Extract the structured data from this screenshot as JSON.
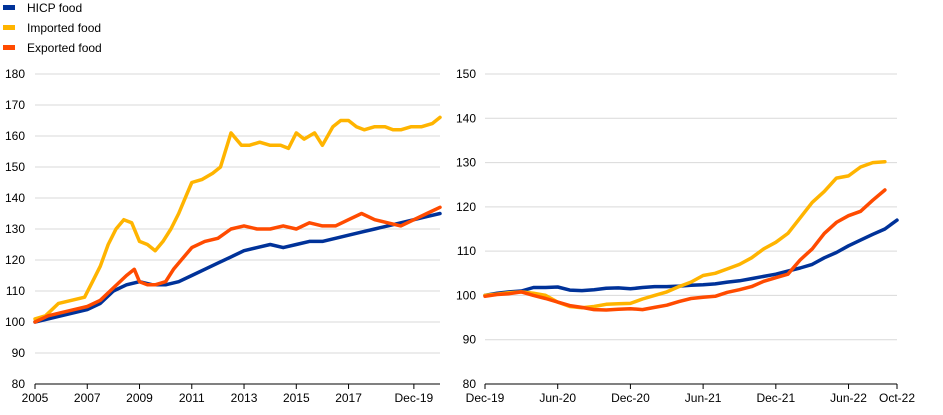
{
  "colors": {
    "hicp": "#003299",
    "imported": "#FFB400",
    "exported": "#FF4B00",
    "grid": "#d9d9d9"
  },
  "legend": [
    {
      "key": "hicp",
      "label": "HICP food",
      "color": "#003299"
    },
    {
      "key": "imported",
      "label": "Imported food",
      "color": "#FFB400"
    },
    {
      "key": "exported",
      "label": "Exported food",
      "color": "#FF4B00"
    }
  ],
  "chart_data": [
    {
      "type": "line",
      "title": "",
      "xlabel": "",
      "ylabel": "",
      "xlim": [
        2005,
        2020.5
      ],
      "ylim": [
        80,
        180
      ],
      "yticks": [
        80,
        90,
        100,
        110,
        120,
        130,
        140,
        150,
        160,
        170,
        180
      ],
      "xticks": [
        {
          "x": 2005,
          "label": "2005"
        },
        {
          "x": 2007,
          "label": "2007"
        },
        {
          "x": 2009,
          "label": "2009"
        },
        {
          "x": 2011,
          "label": "2011"
        },
        {
          "x": 2013,
          "label": "2013"
        },
        {
          "x": 2015,
          "label": "2015"
        },
        {
          "x": 2017,
          "label": "2017"
        },
        {
          "x": 2019.5,
          "label": "Dec-19"
        }
      ],
      "series": [
        {
          "key": "hicp",
          "name": "HICP food",
          "x": [
            2005,
            2006,
            2007,
            2007.5,
            2008,
            2008.5,
            2009,
            2009.5,
            2010,
            2010.5,
            2011,
            2011.5,
            2012,
            2012.5,
            2013,
            2013.5,
            2014,
            2014.5,
            2015,
            2015.5,
            2016,
            2016.5,
            2017,
            2017.5,
            2018,
            2018.5,
            2019,
            2019.5,
            2020,
            2020.5
          ],
          "y": [
            100,
            102,
            104,
            106,
            110,
            112,
            113,
            112,
            112,
            113,
            115,
            117,
            119,
            121,
            123,
            124,
            125,
            124,
            125,
            126,
            126,
            127,
            128,
            129,
            130,
            131,
            132,
            133,
            134,
            135
          ]
        },
        {
          "key": "imported",
          "name": "Imported food",
          "x": [
            2005,
            2005.4,
            2005.9,
            2006.4,
            2006.9,
            2007.2,
            2007.5,
            2007.8,
            2008.1,
            2008.4,
            2008.7,
            2009,
            2009.3,
            2009.6,
            2009.9,
            2010.2,
            2010.5,
            2010.8,
            2011,
            2011.4,
            2011.8,
            2012.1,
            2012.5,
            2012.7,
            2012.9,
            2013.2,
            2013.6,
            2014,
            2014.4,
            2014.7,
            2015,
            2015.3,
            2015.7,
            2016,
            2016.4,
            2016.7,
            2017,
            2017.3,
            2017.6,
            2018,
            2018.4,
            2018.7,
            2019,
            2019.4,
            2019.8,
            2020.2,
            2020.5
          ],
          "y": [
            101,
            102,
            106,
            107,
            108,
            113,
            118,
            125,
            130,
            133,
            132,
            126,
            125,
            123,
            126,
            130,
            135,
            141,
            145,
            146,
            148,
            150,
            161,
            159,
            157,
            157,
            158,
            157,
            157,
            156,
            161,
            159,
            161,
            157,
            163,
            165,
            165,
            163,
            162,
            163,
            163,
            162,
            162,
            163,
            163,
            164,
            166
          ]
        },
        {
          "key": "exported",
          "name": "Exported food",
          "x": [
            2005,
            2005.5,
            2006,
            2006.5,
            2007,
            2007.5,
            2008,
            2008.5,
            2008.8,
            2009,
            2009.3,
            2009.6,
            2010,
            2010.3,
            2010.6,
            2011,
            2011.5,
            2012,
            2012.5,
            2013,
            2013.5,
            2014,
            2014.5,
            2015,
            2015.5,
            2016,
            2016.5,
            2017,
            2017.5,
            2018,
            2018.5,
            2019,
            2019.5,
            2020,
            2020.5
          ],
          "y": [
            100,
            102,
            103,
            104,
            105,
            107,
            111,
            115,
            117,
            113,
            112,
            112,
            113,
            117,
            120,
            124,
            126,
            127,
            130,
            131,
            130,
            130,
            131,
            130,
            132,
            131,
            131,
            133,
            135,
            133,
            132,
            131,
            133,
            135,
            137
          ]
        }
      ]
    },
    {
      "type": "line",
      "title": "",
      "xlabel": "",
      "ylabel": "",
      "xlim": [
        0,
        34
      ],
      "ylim": [
        80,
        150
      ],
      "yticks": [
        80,
        90,
        100,
        110,
        120,
        130,
        140,
        150
      ],
      "xticks": [
        {
          "x": 0,
          "label": "Dec-19"
        },
        {
          "x": 6,
          "label": "Jun-20"
        },
        {
          "x": 12,
          "label": "Dec-20"
        },
        {
          "x": 18,
          "label": "Jun-21"
        },
        {
          "x": 24,
          "label": "Dec-21"
        },
        {
          "x": 30,
          "label": "Jun-22"
        },
        {
          "x": 34,
          "label": "Oct-22"
        }
      ],
      "series": [
        {
          "key": "hicp",
          "name": "HICP food",
          "x": [
            0,
            1,
            2,
            3,
            4,
            5,
            6,
            7,
            8,
            9,
            10,
            11,
            12,
            13,
            14,
            15,
            16,
            17,
            18,
            19,
            20,
            21,
            22,
            23,
            24,
            25,
            26,
            27,
            28,
            29,
            30,
            31,
            32,
            33,
            34
          ],
          "y": [
            100,
            100.5,
            100.8,
            101,
            101.8,
            101.8,
            101.9,
            101.2,
            101.1,
            101.3,
            101.6,
            101.7,
            101.5,
            101.8,
            102,
            102,
            102.1,
            102.3,
            102.4,
            102.6,
            103,
            103.3,
            103.8,
            104.3,
            104.8,
            105.5,
            106.2,
            107,
            108.5,
            109.7,
            111.2,
            112.5,
            113.8,
            115,
            117
          ]
        },
        {
          "key": "imported",
          "name": "Imported food",
          "x": [
            0,
            1,
            2,
            3,
            4,
            5,
            6,
            7,
            8,
            9,
            10,
            11,
            12,
            13,
            14,
            15,
            16,
            17,
            18,
            19,
            20,
            21,
            22,
            23,
            24,
            25,
            26,
            27,
            28,
            29,
            30,
            31,
            32,
            33
          ],
          "y": [
            100,
            100.3,
            100.6,
            100.8,
            100.5,
            100,
            98.5,
            97.5,
            97.2,
            97.5,
            98,
            98.1,
            98.2,
            99.2,
            100,
            100.8,
            102,
            103,
            104.5,
            105,
            106,
            107,
            108.5,
            110.5,
            112,
            114,
            117.5,
            121,
            123.5,
            126.5,
            127,
            129,
            130,
            130.2
          ]
        },
        {
          "key": "exported",
          "name": "Exported food",
          "x": [
            0,
            1,
            2,
            3,
            4,
            5,
            6,
            7,
            8,
            9,
            10,
            11,
            12,
            13,
            14,
            15,
            16,
            17,
            18,
            19,
            20,
            21,
            22,
            23,
            24,
            25,
            26,
            27,
            28,
            29,
            30,
            31,
            32,
            33
          ],
          "y": [
            99.8,
            100.2,
            100.4,
            100.8,
            100,
            99.3,
            98.5,
            97.7,
            97.3,
            96.8,
            96.7,
            96.9,
            97,
            96.8,
            97.3,
            97.8,
            98.6,
            99.3,
            99.6,
            99.8,
            100.7,
            101.3,
            102,
            103.2,
            104,
            104.8,
            108,
            110.5,
            114,
            116.5,
            118,
            119,
            121.5,
            123.8
          ]
        }
      ]
    }
  ]
}
